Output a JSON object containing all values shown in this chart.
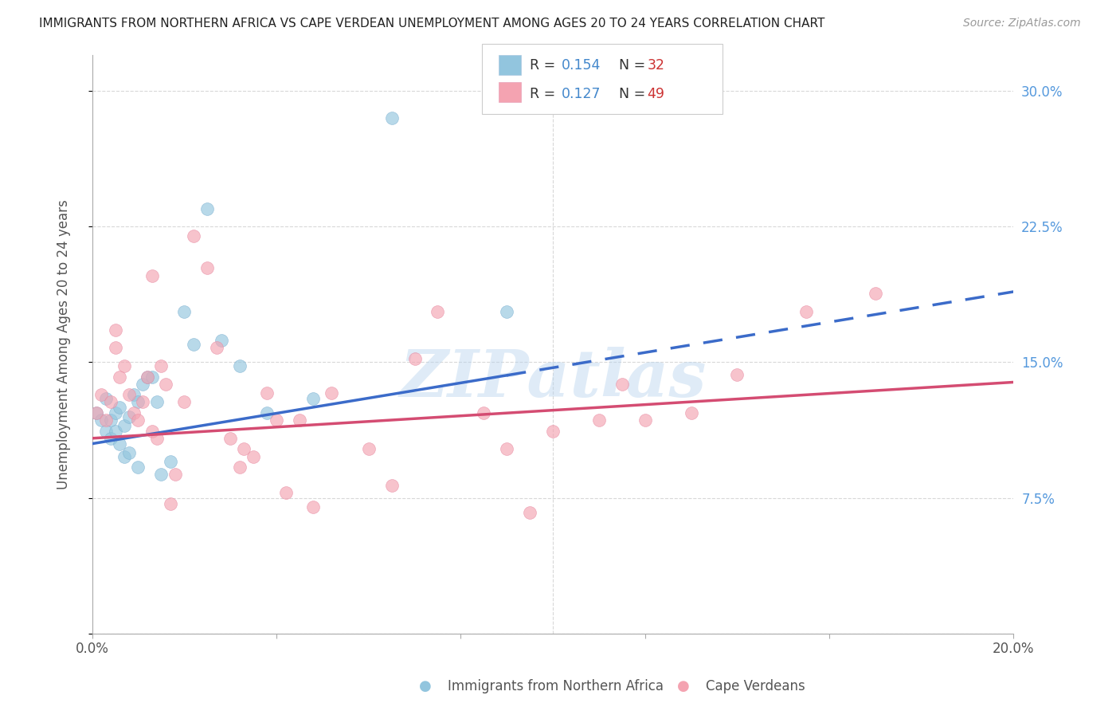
{
  "title": "IMMIGRANTS FROM NORTHERN AFRICA VS CAPE VERDEAN UNEMPLOYMENT AMONG AGES 20 TO 24 YEARS CORRELATION CHART",
  "source": "Source: ZipAtlas.com",
  "ylabel": "Unemployment Among Ages 20 to 24 years",
  "xmin": 0.0,
  "xmax": 0.2,
  "ymin": 0.0,
  "ymax": 0.32,
  "yticks": [
    0.0,
    0.075,
    0.15,
    0.225,
    0.3
  ],
  "ytick_labels": [
    "",
    "7.5%",
    "15.0%",
    "22.5%",
    "30.0%"
  ],
  "xticks": [
    0.0,
    0.04,
    0.08,
    0.12,
    0.16,
    0.2
  ],
  "xtick_labels": [
    "0.0%",
    "",
    "",
    "",
    "",
    "20.0%"
  ],
  "legend_r1": "0.154",
  "legend_n1": "32",
  "legend_r2": "0.127",
  "legend_n2": "49",
  "series1_color": "#92c5de",
  "series2_color": "#f4a3b1",
  "trend1_color": "#3b6bc9",
  "trend2_color": "#d44c72",
  "blue_scatter_x": [
    0.001,
    0.002,
    0.003,
    0.003,
    0.004,
    0.004,
    0.005,
    0.005,
    0.006,
    0.006,
    0.007,
    0.007,
    0.008,
    0.008,
    0.009,
    0.01,
    0.01,
    0.011,
    0.012,
    0.013,
    0.014,
    0.015,
    0.017,
    0.02,
    0.022,
    0.025,
    0.028,
    0.032,
    0.038,
    0.048,
    0.065,
    0.09
  ],
  "blue_scatter_y": [
    0.122,
    0.118,
    0.112,
    0.13,
    0.108,
    0.118,
    0.122,
    0.112,
    0.125,
    0.105,
    0.098,
    0.115,
    0.1,
    0.12,
    0.132,
    0.128,
    0.092,
    0.138,
    0.142,
    0.142,
    0.128,
    0.088,
    0.095,
    0.178,
    0.16,
    0.235,
    0.162,
    0.148,
    0.122,
    0.13,
    0.285,
    0.178
  ],
  "pink_scatter_x": [
    0.001,
    0.002,
    0.003,
    0.004,
    0.005,
    0.005,
    0.006,
    0.007,
    0.008,
    0.009,
    0.01,
    0.011,
    0.012,
    0.013,
    0.013,
    0.014,
    0.015,
    0.016,
    0.017,
    0.018,
    0.02,
    0.022,
    0.025,
    0.027,
    0.03,
    0.032,
    0.033,
    0.035,
    0.038,
    0.04,
    0.042,
    0.045,
    0.048,
    0.052,
    0.06,
    0.065,
    0.07,
    0.075,
    0.085,
    0.09,
    0.095,
    0.1,
    0.11,
    0.115,
    0.12,
    0.13,
    0.14,
    0.155,
    0.17
  ],
  "pink_scatter_y": [
    0.122,
    0.132,
    0.118,
    0.128,
    0.168,
    0.158,
    0.142,
    0.148,
    0.132,
    0.122,
    0.118,
    0.128,
    0.142,
    0.112,
    0.198,
    0.108,
    0.148,
    0.138,
    0.072,
    0.088,
    0.128,
    0.22,
    0.202,
    0.158,
    0.108,
    0.092,
    0.102,
    0.098,
    0.133,
    0.118,
    0.078,
    0.118,
    0.07,
    0.133,
    0.102,
    0.082,
    0.152,
    0.178,
    0.122,
    0.102,
    0.067,
    0.112,
    0.118,
    0.138,
    0.118,
    0.122,
    0.143,
    0.178,
    0.188
  ],
  "background_color": "#ffffff",
  "grid_color": "#d8d8d8",
  "trend1_intercept": 0.105,
  "trend1_slope": 0.42,
  "trend1_solid_end": 0.09,
  "trend1_dash_end": 0.2,
  "trend2_intercept": 0.108,
  "trend2_slope": 0.155
}
